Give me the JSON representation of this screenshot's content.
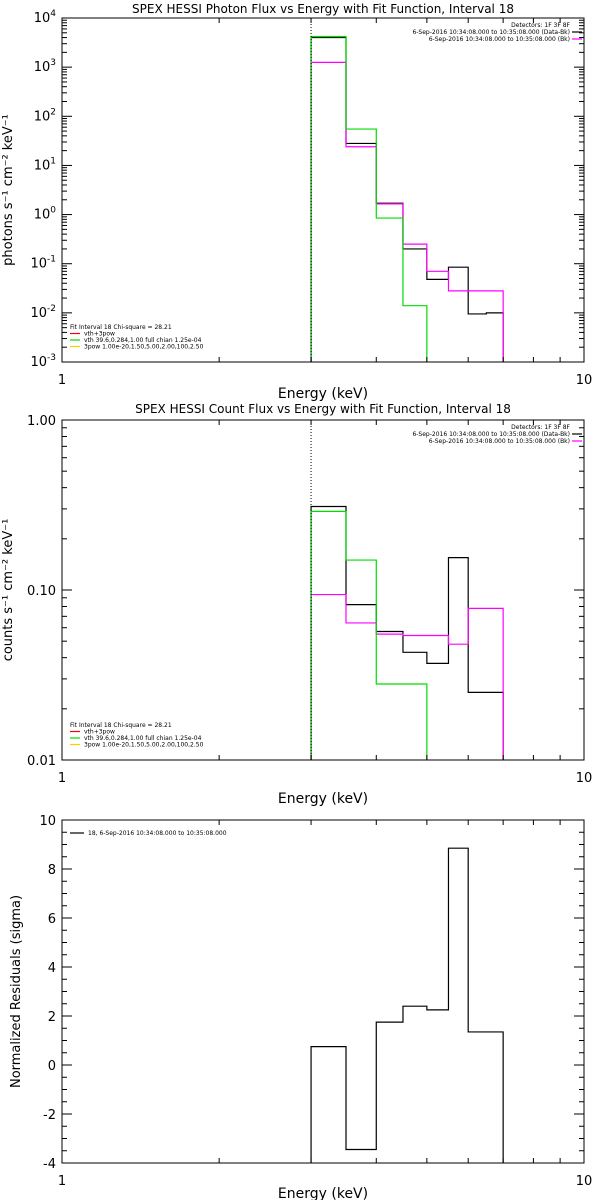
{
  "chart_data": [
    {
      "type": "line",
      "title": "SPEX HESSI Photon Flux vs Energy with Fit Function, Interval 18",
      "xlabel": "Energy (keV)",
      "ylabel": "photons s⁻¹ cm⁻² keV⁻¹",
      "xscale": "log",
      "yscale": "log",
      "xlim": [
        1,
        10
      ],
      "ylim": [
        0.001,
        10000
      ],
      "grid": false,
      "x_ticks": [
        {
          "v": 1,
          "label": "1"
        },
        {
          "v": 10,
          "label": "10"
        }
      ],
      "y_ticks": [
        {
          "v": 0.001,
          "base": "10",
          "exp": "-3"
        },
        {
          "v": 0.01,
          "base": "10",
          "exp": "-2"
        },
        {
          "v": 0.1,
          "base": "10",
          "exp": "-1"
        },
        {
          "v": 1,
          "base": "10",
          "exp": "0"
        },
        {
          "v": 10,
          "base": "10",
          "exp": "1"
        },
        {
          "v": 100,
          "base": "10",
          "exp": "2"
        },
        {
          "v": 1000,
          "base": "10",
          "exp": "3"
        },
        {
          "v": 10000,
          "base": "10",
          "exp": "4"
        }
      ],
      "vline": 3.0,
      "legend_right": {
        "header": "Detectors: 1F 3F 8F",
        "entries": [
          {
            "text": "6-Sep-2016 10:34:08.000 to 10:35:08.000 (Data-Bk)",
            "color": "#000000"
          },
          {
            "text": "6-Sep-2016 10:34:08.000 to 10:35:08.000 (Bk)",
            "color": "#ff00ff"
          }
        ]
      },
      "legend_left": {
        "header": "Fit Interval 18   Chi-square = 28.21",
        "entries": [
          {
            "text": "vth+3pow",
            "color": "#ff0000"
          },
          {
            "text": "vth 39.6,0.284,1.00  full chian 1.25e-04",
            "color": "#00dd00"
          },
          {
            "text": "3pow 1.00e-20,1.50,5.00,2.00,100,2.50",
            "color": "#ffcc00"
          }
        ]
      },
      "series": [
        {
          "color": "#000000",
          "edges": [
            3.0,
            3.5,
            4.0,
            4.5,
            5.0,
            5.5,
            6.0,
            6.5,
            7.0
          ],
          "values": [
            4000,
            28,
            1.7,
            0.2,
            0.048,
            0.085,
            0.0095,
            0.01
          ]
        },
        {
          "color": "#ff00ff",
          "edges": [
            3.0,
            3.5,
            4.0,
            4.5,
            5.0,
            5.5,
            6.0,
            6.5,
            7.0
          ],
          "values": [
            1250,
            24,
            1.65,
            0.25,
            0.07,
            0.028,
            0.028,
            0.028
          ]
        },
        {
          "color": "#00dd00",
          "edges": [
            3.0,
            3.5,
            4.0,
            4.5,
            5.0
          ],
          "values": [
            4200,
            55,
            0.85,
            0.014
          ]
        }
      ]
    },
    {
      "type": "line",
      "title": "SPEX HESSI Count Flux vs Energy with Fit Function, Interval 18",
      "xlabel": "Energy (keV)",
      "ylabel": "counts s⁻¹ cm⁻² keV⁻¹",
      "xscale": "log",
      "yscale": "log",
      "xlim": [
        1,
        10
      ],
      "ylim": [
        0.01,
        1.0
      ],
      "grid": false,
      "x_ticks": [
        {
          "v": 1,
          "label": "1"
        },
        {
          "v": 10,
          "label": "10"
        }
      ],
      "y_ticks": [
        {
          "v": 0.01,
          "label": "0.01"
        },
        {
          "v": 0.1,
          "label": "0.10"
        },
        {
          "v": 1.0,
          "label": "1.00"
        }
      ],
      "vline": 3.0,
      "legend_right": {
        "header": "Detectors: 1F 3F 8F",
        "entries": [
          {
            "text": "6-Sep-2016 10:34:08.000 to 10:35:08.000 (Data-Bk)",
            "color": "#000000"
          },
          {
            "text": "6-Sep-2016 10:34:08.000 to 10:35:08.000 (Bk)",
            "color": "#ff00ff"
          }
        ]
      },
      "legend_left": {
        "header": "Fit Interval 18   Chi-square = 28.21",
        "entries": [
          {
            "text": "vth+3pow",
            "color": "#ff0000"
          },
          {
            "text": "vth 39.6,0.284,1.00  full chian 1.25e-04",
            "color": "#00dd00"
          },
          {
            "text": "3pow 1.00e-20,1.50,5.00,2.00,100,2.50",
            "color": "#ffcc00"
          }
        ]
      },
      "series": [
        {
          "color": "#000000",
          "edges": [
            3.0,
            3.5,
            4.0,
            4.5,
            5.0,
            5.5,
            6.0,
            6.5,
            7.0
          ],
          "values": [
            0.31,
            0.082,
            0.057,
            0.043,
            0.037,
            0.155,
            0.025,
            0.025
          ]
        },
        {
          "color": "#ff00ff",
          "edges": [
            3.0,
            3.5,
            4.0,
            4.5,
            5.0,
            5.5,
            6.0,
            6.5,
            7.0
          ],
          "values": [
            0.094,
            0.064,
            0.055,
            0.054,
            0.054,
            0.048,
            0.078,
            0.078
          ]
        },
        {
          "color": "#00dd00",
          "edges": [
            3.0,
            3.5,
            4.0,
            4.5,
            5.0
          ],
          "values": [
            0.29,
            0.15,
            0.028,
            0.028
          ]
        }
      ]
    },
    {
      "type": "line",
      "title": "",
      "xlabel": "Energy (keV)",
      "ylabel": "Normalized Residuals (sigma)",
      "xscale": "log",
      "yscale": "linear",
      "xlim": [
        1,
        10
      ],
      "ylim": [
        -4,
        10
      ],
      "grid": false,
      "x_ticks": [
        {
          "v": 1,
          "label": "1"
        },
        {
          "v": 10,
          "label": "10"
        }
      ],
      "y_ticks": [
        {
          "v": -4,
          "label": "-4"
        },
        {
          "v": -2,
          "label": "-2"
        },
        {
          "v": 0,
          "label": "0"
        },
        {
          "v": 2,
          "label": "2"
        },
        {
          "v": 4,
          "label": "4"
        },
        {
          "v": 6,
          "label": "6"
        },
        {
          "v": 8,
          "label": "8"
        },
        {
          "v": 10,
          "label": "10"
        }
      ],
      "legend_left": {
        "header": "",
        "entries": [
          {
            "text": "18,  6-Sep-2016 10:34:08.000 to 10:35:08.000",
            "color": "#000000"
          }
        ]
      },
      "series": [
        {
          "color": "#000000",
          "edges": [
            3.0,
            3.5,
            4.0,
            4.5,
            5.0,
            5.5,
            6.0,
            6.5,
            7.0
          ],
          "values": [
            0.75,
            -3.45,
            1.75,
            2.4,
            2.25,
            8.85,
            1.35,
            1.35
          ]
        }
      ]
    }
  ]
}
